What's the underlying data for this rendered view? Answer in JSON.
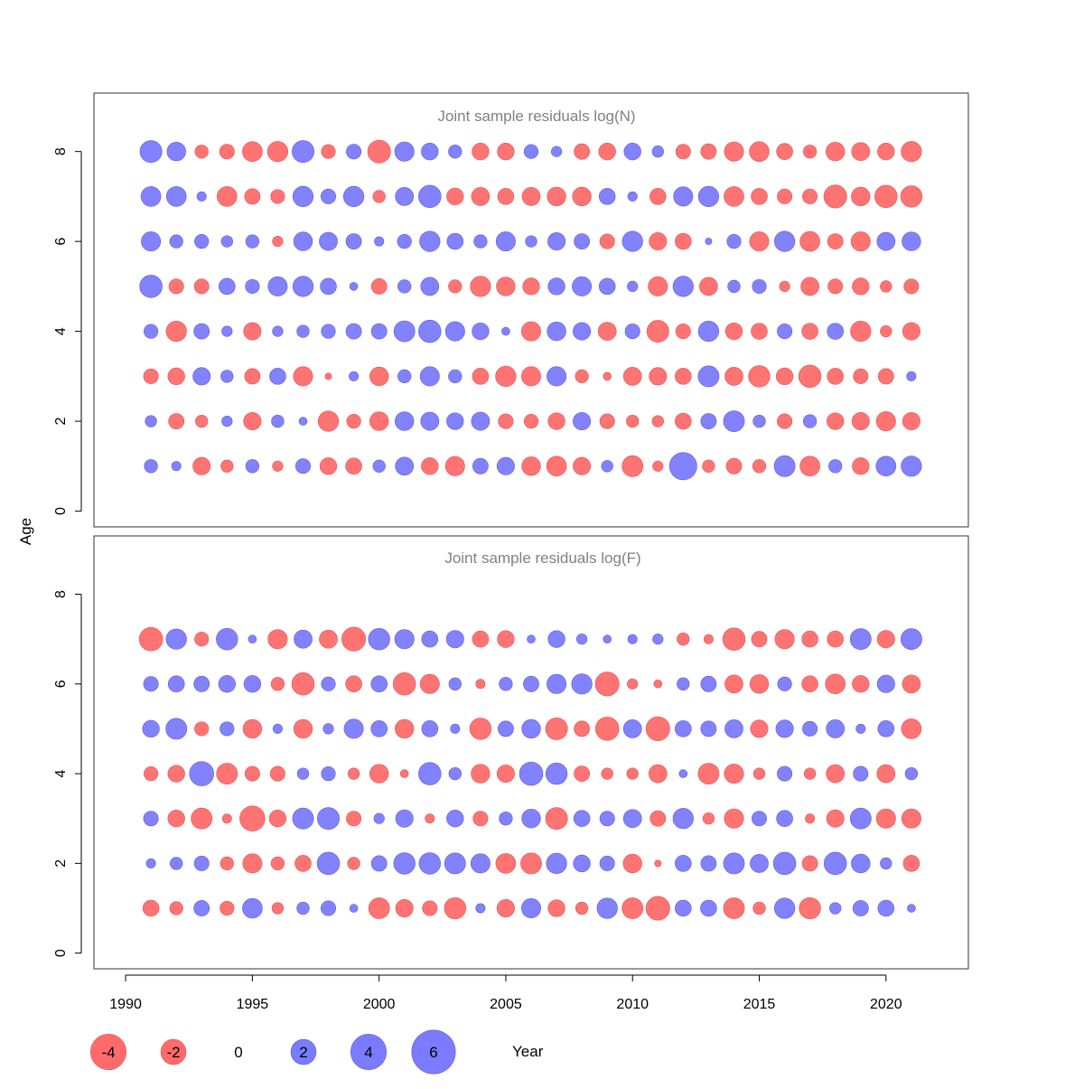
{
  "chart_data": {
    "type": "scatter",
    "encoding": "bubble",
    "ylabel": "Age",
    "xlabel": "Year",
    "xlim": [
      1988.75,
      2023.25
    ],
    "xticks": [
      1990,
      1995,
      2000,
      2005,
      2010,
      2015,
      2020
    ],
    "ylim": [
      -0.35,
      9.3
    ],
    "yticks": [
      0,
      2,
      4,
      6,
      8
    ],
    "colors": {
      "negative": "#FF6B6B",
      "positive": "#7B7BFF",
      "negative_stroke": "#E05555",
      "positive_stroke": "#5A5AE0"
    },
    "panels": [
      {
        "title": "Joint sample residuals log(N)",
        "years": [
          1991,
          1992,
          1993,
          1994,
          1995,
          1996,
          1997,
          1998,
          1999,
          2000,
          2001,
          2002,
          2003,
          2004,
          2005,
          2006,
          2007,
          2008,
          2009,
          2010,
          2011,
          2012,
          2013,
          2014,
          2015,
          2016,
          2017,
          2018,
          2019,
          2020,
          2021
        ],
        "rows": [
          {
            "age": 8,
            "residuals": [
              2.2,
              1.6,
              -0.8,
              -1.0,
              -1.8,
              -1.9,
              2.2,
              -0.9,
              1.0,
              -2.4,
              1.7,
              1.3,
              0.8,
              -1.3,
              -1.3,
              0.9,
              0.5,
              -1.1,
              -1.3,
              1.3,
              0.6,
              -1.0,
              -1.1,
              -1.7,
              -1.8,
              -1.2,
              -0.8,
              -1.6,
              -1.5,
              -1.3,
              -1.9
            ]
          },
          {
            "age": 7,
            "residuals": [
              1.8,
              1.8,
              0.4,
              -1.8,
              -1.1,
              -0.9,
              1.9,
              1.0,
              1.9,
              -0.7,
              1.5,
              2.3,
              -1.3,
              -1.5,
              -1.2,
              -1.5,
              -1.6,
              -1.6,
              1.2,
              0.4,
              -1.2,
              1.7,
              1.9,
              -1.8,
              -1.2,
              -1.0,
              -1.0,
              -2.4,
              -1.6,
              -2.3,
              -2.1
            ]
          },
          {
            "age": 6,
            "residuals": [
              1.7,
              0.8,
              0.9,
              0.6,
              0.8,
              -0.5,
              1.6,
              1.5,
              1.1,
              0.4,
              0.9,
              1.9,
              1.2,
              0.8,
              1.7,
              0.6,
              1.4,
              1.1,
              -1.0,
              1.9,
              -1.4,
              -1.2,
              0.2,
              0.9,
              -1.7,
              1.9,
              -1.8,
              -1.1,
              -1.7,
              1.5,
              1.6
            ]
          },
          {
            "age": 5,
            "residuals": [
              2.3,
              -1.0,
              -1.0,
              1.2,
              0.9,
              1.7,
              1.9,
              1.2,
              0.3,
              -1.1,
              0.8,
              1.5,
              -0.8,
              -1.9,
              -1.6,
              -1.3,
              1.3,
              1.7,
              1.2,
              0.5,
              -1.7,
              1.9,
              -1.5,
              0.7,
              0.9,
              -0.5,
              -1.5,
              -1.0,
              -1.3,
              -0.6,
              -1.0
            ]
          },
          {
            "age": 4,
            "residuals": [
              0.9,
              -1.9,
              1.1,
              0.5,
              -1.4,
              0.5,
              0.7,
              0.9,
              1.1,
              1.1,
              2.0,
              2.3,
              1.7,
              1.3,
              0.3,
              -1.7,
              1.6,
              1.4,
              -1.5,
              1.0,
              -2.2,
              -1.0,
              1.9,
              -1.3,
              -1.2,
              1.0,
              -1.2,
              1.2,
              -1.9,
              -0.6,
              -1.4
            ]
          },
          {
            "age": 3,
            "residuals": [
              -1.0,
              -1.3,
              1.4,
              0.7,
              -1.1,
              1.2,
              -1.7,
              -0.2,
              0.4,
              -1.6,
              0.8,
              1.7,
              0.8,
              -1.2,
              -1.9,
              -1.7,
              1.7,
              -0.8,
              -0.3,
              -1.5,
              -1.4,
              -1.2,
              2.0,
              -1.5,
              -2.1,
              -1.3,
              -2.3,
              -1.2,
              -1.0,
              -1.1,
              0.4
            ]
          },
          {
            "age": 2,
            "residuals": [
              0.6,
              -1.1,
              -0.7,
              0.5,
              -1.4,
              0.7,
              0.3,
              -1.9,
              -0.9,
              -1.6,
              1.6,
              1.5,
              1.3,
              1.5,
              -1.0,
              -0.9,
              -1.3,
              1.4,
              -1.0,
              -0.7,
              -0.6,
              -1.2,
              1.1,
              2.0,
              0.7,
              -1.0,
              0.8,
              -1.3,
              -1.4,
              -1.7,
              -1.4
            ]
          },
          {
            "age": 1,
            "residuals": [
              0.8,
              0.4,
              -1.4,
              -0.7,
              0.8,
              -0.5,
              1.0,
              -1.3,
              -1.2,
              0.7,
              1.5,
              -1.3,
              -1.7,
              1.1,
              1.4,
              -1.6,
              -1.8,
              -1.4,
              0.6,
              -2.0,
              -0.5,
              3.4,
              -0.7,
              -1.1,
              -0.8,
              2.0,
              -1.8,
              0.8,
              -1.3,
              1.8,
              1.9
            ]
          }
        ]
      },
      {
        "title": "Joint sample residuals log(F)",
        "years": [
          1991,
          1992,
          1993,
          1994,
          1995,
          1996,
          1997,
          1998,
          1999,
          2000,
          2001,
          2002,
          2003,
          2004,
          2005,
          2006,
          2007,
          2008,
          2009,
          2010,
          2011,
          2012,
          2013,
          2014,
          2015,
          2016,
          2017,
          2018,
          2019,
          2020,
          2021
        ],
        "rows": [
          {
            "age": 7,
            "residuals": [
              -2.5,
              1.9,
              -0.9,
              2.1,
              0.3,
              -1.7,
              1.5,
              -1.5,
              -2.6,
              2.1,
              1.7,
              1.2,
              1.4,
              -1.2,
              -1.3,
              0.3,
              1.3,
              0.5,
              0.3,
              0.4,
              0.5,
              -0.7,
              -0.4,
              -2.3,
              -1.1,
              -1.7,
              -1.2,
              -1.2,
              2.0,
              -1.4,
              2.0
            ]
          },
          {
            "age": 6,
            "residuals": [
              1.0,
              1.2,
              1.1,
              1.3,
              1.3,
              -0.8,
              -2.3,
              0.9,
              -1.2,
              1.2,
              -2.3,
              -1.7,
              0.7,
              -0.4,
              0.8,
              1.1,
              1.7,
              1.9,
              -2.6,
              -0.5,
              -0.3,
              0.7,
              1.1,
              -1.5,
              -1.6,
              0.9,
              -1.2,
              -1.8,
              -1.3,
              1.4,
              -1.5
            ]
          },
          {
            "age": 5,
            "residuals": [
              1.3,
              2.0,
              -0.9,
              0.9,
              -1.6,
              0.4,
              -1.6,
              0.5,
              1.7,
              1.2,
              -1.6,
              1.2,
              0.4,
              -2.1,
              1.1,
              1.6,
              -2.2,
              -1.1,
              -2.5,
              1.5,
              -2.6,
              1.2,
              1.1,
              1.5,
              -1.4,
              1.4,
              1.0,
              1.5,
              0.4,
              1.2,
              -1.8
            ]
          },
          {
            "age": 4,
            "residuals": [
              -0.9,
              -1.3,
              2.7,
              -2.0,
              -1.0,
              -1.0,
              0.6,
              0.9,
              -0.6,
              -1.6,
              -0.3,
              2.3,
              0.7,
              -1.6,
              -1.4,
              2.5,
              2.1,
              -1.1,
              -0.6,
              -0.6,
              -1.5,
              0.3,
              -2.0,
              -1.7,
              -0.6,
              1.0,
              -0.6,
              -1.5,
              1.0,
              -1.5,
              0.7
            ]
          },
          {
            "age": 3,
            "residuals": [
              1.0,
              -1.3,
              -2.0,
              -0.4,
              -2.9,
              -1.3,
              2.0,
              2.2,
              -1.0,
              0.5,
              1.4,
              -0.4,
              1.3,
              -1.0,
              0.8,
              1.6,
              -2.2,
              1.2,
              1.0,
              1.5,
              -1.1,
              1.9,
              -0.6,
              -1.7,
              1.0,
              1.2,
              -0.4,
              -1.4,
              2.0,
              -1.7,
              -1.7
            ]
          },
          {
            "age": 2,
            "residuals": [
              0.4,
              0.7,
              1.0,
              -0.8,
              -1.7,
              -0.8,
              -1.2,
              2.3,
              -0.7,
              1.1,
              2.1,
              2.1,
              2.0,
              1.7,
              -1.8,
              -2.0,
              1.9,
              1.3,
              1.0,
              -1.6,
              -0.2,
              1.2,
              1.1,
              2.0,
              1.5,
              2.3,
              -1.1,
              2.3,
              1.6,
              0.6,
              -1.2
            ]
          },
          {
            "age": 1,
            "residuals": [
              -1.2,
              -0.8,
              1.1,
              -0.9,
              1.8,
              -0.6,
              0.7,
              1.0,
              0.3,
              -2.0,
              -1.4,
              -1.0,
              -2.1,
              0.4,
              -1.4,
              1.7,
              -1.3,
              -0.7,
              1.9,
              -2.0,
              -2.6,
              1.2,
              1.2,
              -2.0,
              -0.7,
              1.9,
              -2.1,
              0.6,
              1.1,
              1.2,
              0.3
            ]
          }
        ]
      }
    ],
    "legend": [
      {
        "label": "-4",
        "value": -4
      },
      {
        "label": "-2",
        "value": -2
      },
      {
        "label": "0",
        "value": 0
      },
      {
        "label": "2",
        "value": 2
      },
      {
        "label": "4",
        "value": 4
      },
      {
        "label": "6",
        "value": 6
      }
    ]
  }
}
